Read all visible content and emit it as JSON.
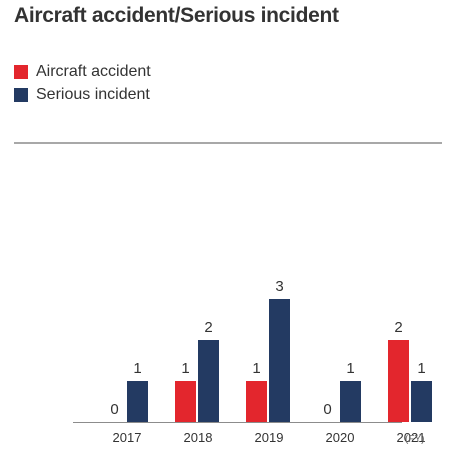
{
  "title": "Aircraft accident/Serious incident",
  "colors": {
    "accident": "#e3262d",
    "serious": "#233a62",
    "axis": "#8c8c8c",
    "text": "#333333",
    "divider": "#a8a8a8"
  },
  "chart_data": {
    "type": "bar",
    "title": "Aircraft accident/Serious incident",
    "categories": [
      "2017",
      "2018",
      "2019",
      "2020",
      "2021"
    ],
    "x_unit": "(FY)",
    "series": [
      {
        "name": "Aircraft accident",
        "color": "#e3262d",
        "values": [
          0,
          1,
          1,
          0,
          2
        ]
      },
      {
        "name": "Serious incident",
        "color": "#233a62",
        "values": [
          1,
          2,
          3,
          1,
          1
        ]
      }
    ],
    "ylim": [
      0,
      3
    ],
    "grid": false,
    "legend_position": "top-left"
  }
}
